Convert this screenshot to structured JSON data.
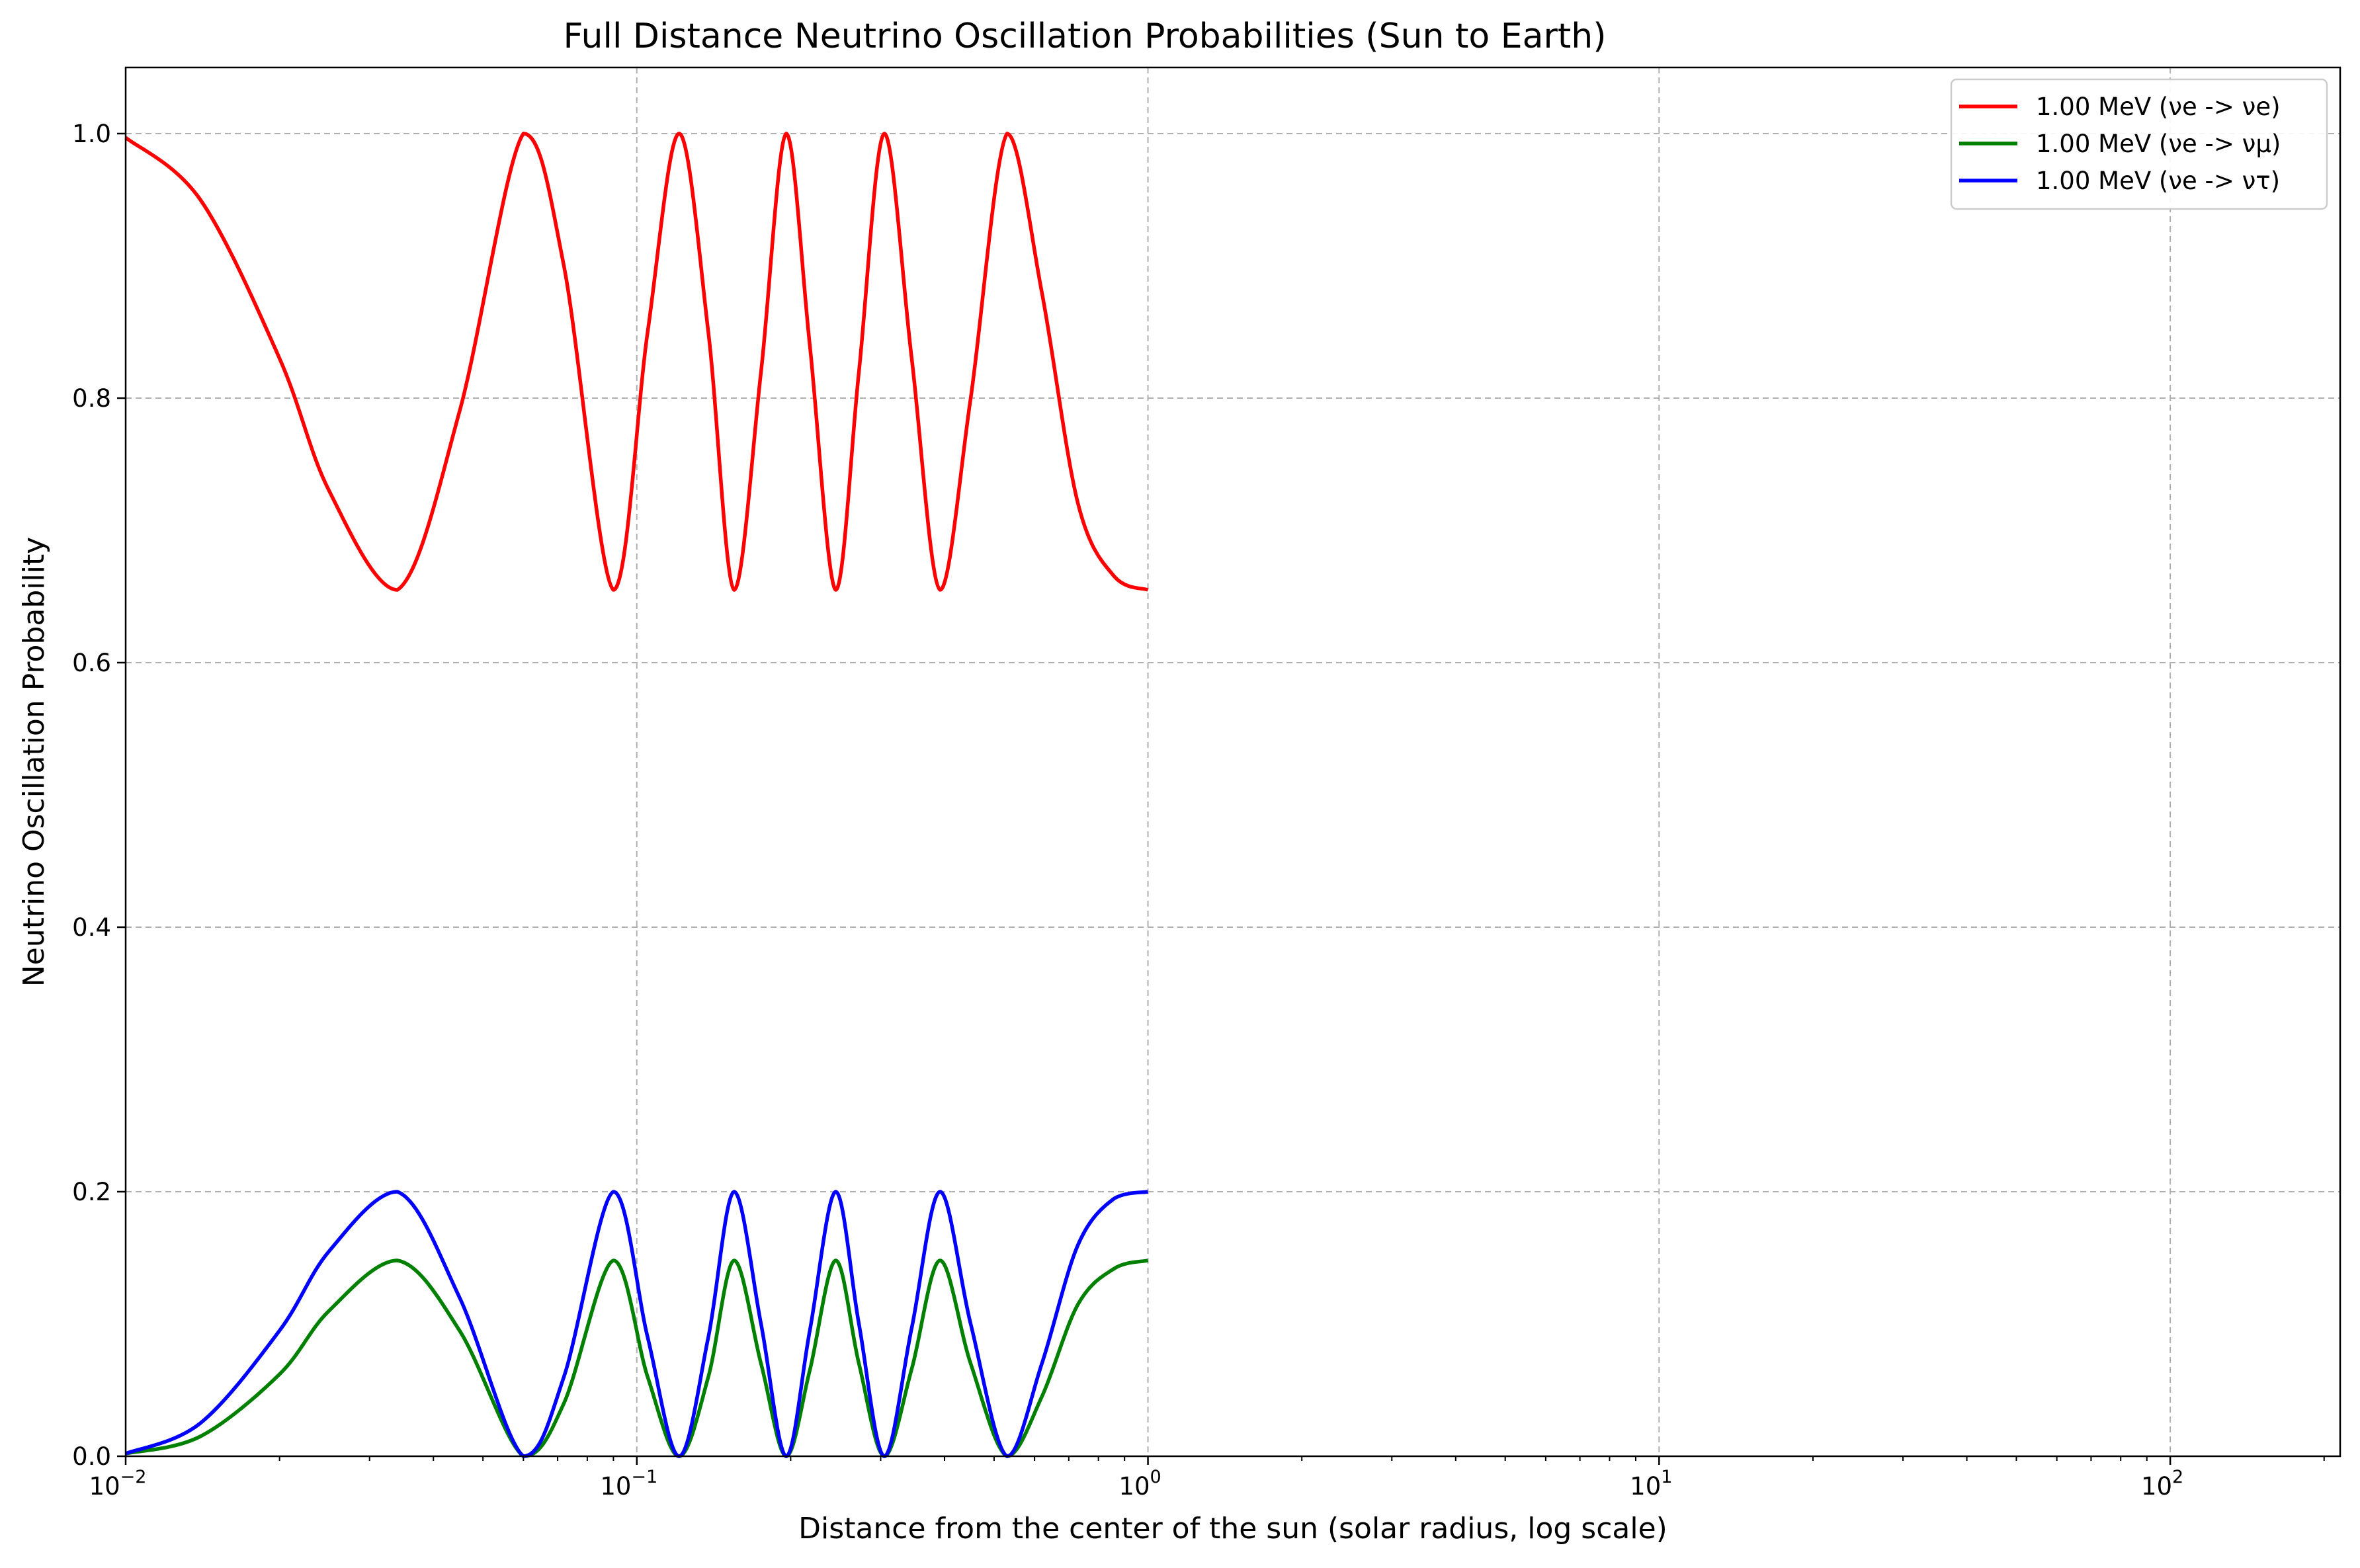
{
  "chart_data": {
    "type": "line",
    "title": "Full Distance Neutrino Oscillation Probabilities (Sun to Earth)",
    "xlabel": "Distance from the center of the sun (solar radius, log scale)",
    "ylabel": "Neutrino Oscillation Probability",
    "xscale": "log",
    "xlim": [
      0.01,
      215
    ],
    "ylim": [
      0,
      1.05
    ],
    "grid": true,
    "legend_position": "top-right",
    "xticks": [
      {
        "value": 0.01,
        "base": "10",
        "exp": "−2"
      },
      {
        "value": 0.1,
        "base": "10",
        "exp": "−1"
      },
      {
        "value": 1,
        "base": "10",
        "exp": "0"
      },
      {
        "value": 10,
        "base": "10",
        "exp": "1"
      },
      {
        "value": 100,
        "base": "10",
        "exp": "2"
      }
    ],
    "yticks": [
      "0.0",
      "0.2",
      "0.4",
      "0.6",
      "0.8",
      "1.0"
    ],
    "series": [
      {
        "name": "1.00 MeV (νe -> νe)",
        "color": "#ff0000",
        "x": [
          0.01,
          0.014,
          0.02,
          0.025,
          0.034,
          0.045,
          0.06,
          0.072,
          0.09,
          0.105,
          0.121,
          0.138,
          0.155,
          0.175,
          0.196,
          0.218,
          0.245,
          0.272,
          0.305,
          0.345,
          0.392,
          0.45,
          0.53,
          0.62,
          0.73,
          0.86,
          1.0
        ],
        "y": [
          0.997,
          0.95,
          0.83,
          0.73,
          0.655,
          0.79,
          1.0,
          0.9,
          0.655,
          0.85,
          1.0,
          0.85,
          0.655,
          0.82,
          1.0,
          0.84,
          0.655,
          0.82,
          1.0,
          0.83,
          0.655,
          0.8,
          1.0,
          0.88,
          0.72,
          0.665,
          0.655
        ]
      },
      {
        "name": "1.00 MeV (νe -> νμ)",
        "color": "#008000",
        "x": [
          0.01,
          0.014,
          0.02,
          0.025,
          0.034,
          0.045,
          0.06,
          0.072,
          0.09,
          0.105,
          0.121,
          0.138,
          0.155,
          0.175,
          0.196,
          0.218,
          0.245,
          0.272,
          0.305,
          0.345,
          0.392,
          0.45,
          0.53,
          0.62,
          0.73,
          0.86,
          1.0
        ],
        "y": [
          0.002,
          0.015,
          0.062,
          0.11,
          0.148,
          0.095,
          0.0,
          0.04,
          0.148,
          0.06,
          0.0,
          0.06,
          0.148,
          0.07,
          0.0,
          0.065,
          0.148,
          0.07,
          0.0,
          0.066,
          0.148,
          0.07,
          0.0,
          0.045,
          0.115,
          0.142,
          0.148
        ]
      },
      {
        "name": "1.00 MeV (νe -> ντ)",
        "color": "#0000ff",
        "x": [
          0.01,
          0.014,
          0.02,
          0.025,
          0.034,
          0.045,
          0.06,
          0.072,
          0.09,
          0.105,
          0.121,
          0.138,
          0.155,
          0.175,
          0.196,
          0.218,
          0.245,
          0.272,
          0.305,
          0.345,
          0.392,
          0.45,
          0.53,
          0.62,
          0.73,
          0.86,
          1.0
        ],
        "y": [
          0.002,
          0.025,
          0.095,
          0.155,
          0.2,
          0.12,
          0.0,
          0.06,
          0.2,
          0.09,
          0.0,
          0.09,
          0.2,
          0.1,
          0.0,
          0.095,
          0.2,
          0.1,
          0.0,
          0.097,
          0.2,
          0.1,
          0.0,
          0.07,
          0.16,
          0.195,
          0.2
        ]
      }
    ]
  }
}
